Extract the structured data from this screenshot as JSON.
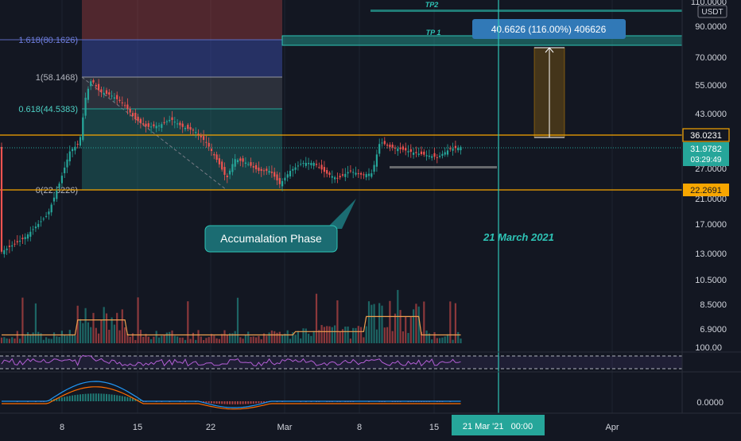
{
  "chart_data": {
    "type": "candlestick",
    "quote_currency": "USDT",
    "price_scale": "log",
    "y_ticks": [
      "110.0000",
      "90.0000",
      "70.0000",
      "55.0000",
      "43.0000",
      "27.0000",
      "21.0000",
      "17.0000",
      "13.0000",
      "10.5000",
      "8.5000",
      "6.9000"
    ],
    "rsi_tick": "100.00",
    "macd_tick": "0.0000",
    "x_ticks": [
      "8",
      "15",
      "22",
      "Mar",
      "8",
      "15",
      "Apr"
    ],
    "current_price": "31.9782",
    "countdown": "03:29:49",
    "level_labels": [
      "36.0231",
      "22.2691"
    ],
    "levels": [
      36.0231,
      22.2691
    ],
    "cursor_date": "21 Mar '21   00:00",
    "fibonacci": [
      {
        "label": "1.618(80.1626)",
        "price": 80.1626
      },
      {
        "label": "1(58.1468)",
        "price": 58.1468
      },
      {
        "label": "0.618(44.5383)",
        "price": 44.5383
      },
      {
        "label": "0(22.3226)",
        "price": 22.3226
      }
    ],
    "targets": [
      {
        "label": "TP2",
        "price": 105
      },
      {
        "label": "TP 1",
        "price": 80
      }
    ],
    "measure_label": "40.6626 (116.00%) 406626",
    "annotation": "Accumalation Phase",
    "event_label": "21 March 2021",
    "colors": {
      "up": "#26a69a",
      "down": "#ef5350",
      "level": "#f7a600",
      "teal": "#2ec4b6",
      "label_bg": "#3179b7"
    }
  }
}
